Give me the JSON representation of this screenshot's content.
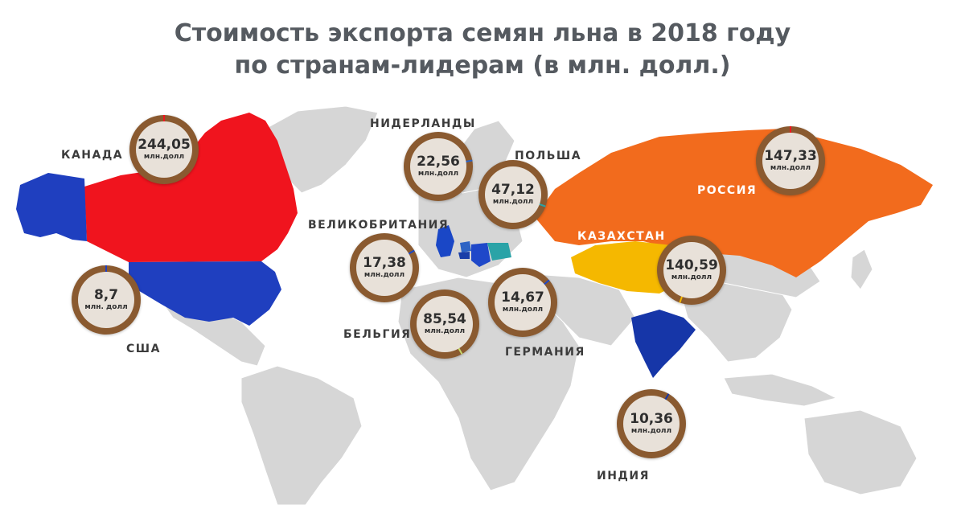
{
  "title": {
    "line1": "Стоимость экспорта семян льна в 2018 году",
    "line2": "по странам-лидерам (в млн. долл.)"
  },
  "colors": {
    "land": "#d6d6d6",
    "canada": "#f0141e",
    "usa": "#1f3fbf",
    "russia": "#f26b1d",
    "kazakhstan": "#f5b800",
    "india": "#1636a8",
    "uk": "#1a47c6",
    "germany": "#1f48c9",
    "poland": "#2aa3a7",
    "netherlands": "#2d63c4",
    "belgium": "#1b3fa8",
    "bubble_ring": "#8a5a30",
    "bubble_fill": "#e8e1d9"
  },
  "unit_label": "млн.долл",
  "unit_label_spaced": "млн. долл",
  "countries": [
    {
      "id": "canada",
      "label": "КАНАДА",
      "value": "244,05",
      "tick_color": "#f0141e"
    },
    {
      "id": "usa",
      "label": "США",
      "value": "8,7",
      "tick_color": "#1f3fbf"
    },
    {
      "id": "netherlands",
      "label": "НИДЕРЛАНДЫ",
      "value": "22,56",
      "tick_color": "#2d63c4"
    },
    {
      "id": "poland",
      "label": "ПОЛЬША",
      "value": "47,12",
      "tick_color": "#2aa3a7"
    },
    {
      "id": "uk",
      "label": "ВЕЛИКОБРИТАНИЯ",
      "value": "17,38",
      "tick_color": "#1a47c6"
    },
    {
      "id": "belgium",
      "label": "БЕЛЬГИЯ",
      "value": "85,54",
      "tick_color": "#c8d96a"
    },
    {
      "id": "germany",
      "label": "ГЕРМАНИЯ",
      "value": "14,67",
      "tick_color": "#1f48c9"
    },
    {
      "id": "russia",
      "label": "РОССИЯ",
      "value": "147,33",
      "tick_color": "#f0141e"
    },
    {
      "id": "kazakhstan",
      "label": "КАЗАХСТАН",
      "value": "140,59",
      "tick_color": "#f5b800"
    },
    {
      "id": "india",
      "label": "ИНДИЯ",
      "value": "10,36",
      "tick_color": "#1636a8"
    }
  ]
}
